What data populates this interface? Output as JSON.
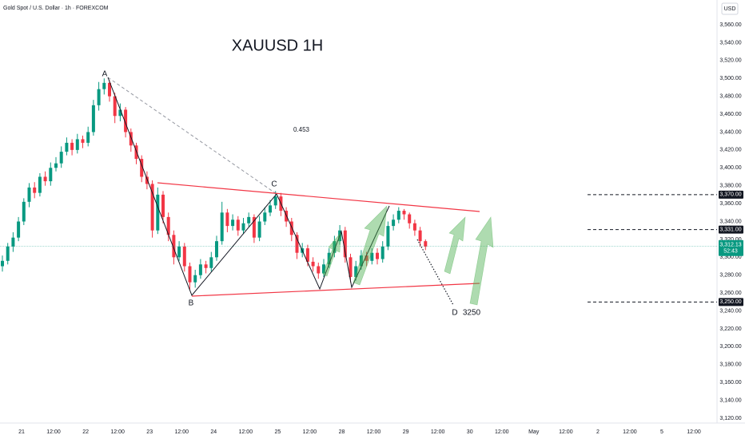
{
  "chart_data": {
    "type": "candlestick",
    "subtitle": "Gold Spot / U.S. Dollar · 1h · FOREXCOM",
    "currency": "USD",
    "title": "XAUUSD 1H",
    "annotations": {
      "a": "A",
      "b": "B",
      "c": "C",
      "d": "D",
      "target": "3250",
      "ratio": "0.453"
    },
    "up_color": "#089981",
    "down_color": "#f23645",
    "open": [
      3290,
      3296,
      3312,
      3322,
      3340,
      3362,
      3378,
      3372,
      3390,
      3385,
      3400,
      3405,
      3418,
      3428,
      3420,
      3432,
      3428,
      3440,
      3470,
      3488,
      3495,
      3480,
      3458,
      3465,
      3440,
      3425,
      3410,
      3390,
      3382,
      3330,
      3370,
      3345,
      3325,
      3300,
      3312,
      3290,
      3272,
      3280,
      3292,
      3288,
      3300,
      3318,
      3350,
      3335,
      3342,
      3330,
      3338,
      3345,
      3322,
      3340,
      3350,
      3358,
      3368,
      3352,
      3340,
      3325,
      3305,
      3310,
      3295,
      3290,
      3282,
      3292,
      3305,
      3318,
      3330,
      3300,
      3278,
      3290,
      3302,
      3296,
      3305,
      3298,
      3312,
      3335,
      3342,
      3352,
      3348,
      3338,
      3330,
      3318
    ],
    "high": [
      3302,
      3316,
      3328,
      3345,
      3366,
      3383,
      3384,
      3394,
      3396,
      3406,
      3412,
      3424,
      3434,
      3432,
      3438,
      3436,
      3446,
      3476,
      3496,
      3500,
      3498,
      3484,
      3472,
      3468,
      3444,
      3428,
      3414,
      3396,
      3386,
      3378,
      3374,
      3350,
      3330,
      3318,
      3316,
      3294,
      3286,
      3298,
      3296,
      3306,
      3324,
      3362,
      3354,
      3348,
      3346,
      3344,
      3350,
      3348,
      3346,
      3356,
      3364,
      3374,
      3372,
      3356,
      3344,
      3328,
      3316,
      3314,
      3300,
      3294,
      3298,
      3310,
      3324,
      3336,
      3334,
      3304,
      3296,
      3308,
      3306,
      3310,
      3310,
      3318,
      3340,
      3348,
      3356,
      3354,
      3350,
      3342,
      3334,
      3320
    ],
    "low": [
      3284,
      3292,
      3306,
      3318,
      3336,
      3356,
      3366,
      3368,
      3380,
      3380,
      3396,
      3400,
      3414,
      3414,
      3416,
      3422,
      3424,
      3436,
      3464,
      3482,
      3474,
      3450,
      3452,
      3434,
      3418,
      3404,
      3384,
      3376,
      3322,
      3326,
      3338,
      3318,
      3292,
      3296,
      3284,
      3264,
      3266,
      3276,
      3282,
      3284,
      3296,
      3314,
      3328,
      3330,
      3324,
      3326,
      3334,
      3316,
      3318,
      3336,
      3346,
      3354,
      3346,
      3334,
      3318,
      3298,
      3300,
      3290,
      3284,
      3276,
      3278,
      3288,
      3300,
      3314,
      3294,
      3272,
      3274,
      3286,
      3290,
      3292,
      3292,
      3294,
      3308,
      3330,
      3338,
      3342,
      3332,
      3324,
      3312,
      3308
    ],
    "close": [
      3296,
      3312,
      3322,
      3340,
      3362,
      3378,
      3372,
      3390,
      3385,
      3400,
      3405,
      3418,
      3428,
      3420,
      3432,
      3428,
      3440,
      3470,
      3488,
      3495,
      3480,
      3458,
      3465,
      3440,
      3425,
      3410,
      3390,
      3382,
      3330,
      3370,
      3345,
      3325,
      3300,
      3312,
      3290,
      3272,
      3280,
      3292,
      3288,
      3300,
      3318,
      3350,
      3335,
      3342,
      3330,
      3338,
      3345,
      3322,
      3340,
      3350,
      3358,
      3368,
      3352,
      3340,
      3325,
      3305,
      3310,
      3295,
      3290,
      3282,
      3292,
      3305,
      3318,
      3330,
      3300,
      3278,
      3290,
      3302,
      3296,
      3305,
      3298,
      3312,
      3335,
      3342,
      3352,
      3348,
      3338,
      3330,
      3318,
      3312
    ],
    "ylim": [
      3120,
      3560
    ],
    "yticks": [
      {
        "value": 3120,
        "label": "3,120.00"
      },
      {
        "value": 3140,
        "label": "3,140.00"
      },
      {
        "value": 3160,
        "label": "3,160.00"
      },
      {
        "value": 3180,
        "label": "3,180.00"
      },
      {
        "value": 3200,
        "label": "3,200.00"
      },
      {
        "value": 3220,
        "label": "3,220.00"
      },
      {
        "value": 3240,
        "label": "3,240.00"
      },
      {
        "value": 3260,
        "label": "3,260.00"
      },
      {
        "value": 3280,
        "label": "3,280.00"
      },
      {
        "value": 3300,
        "label": "3,300.00"
      },
      {
        "value": 3320,
        "label": "3,320.00"
      },
      {
        "value": 3340,
        "label": "3,340.00"
      },
      {
        "value": 3360,
        "label": "3,360.00"
      },
      {
        "value": 3380,
        "label": "3,380.00"
      },
      {
        "value": 3400,
        "label": "3,400.00"
      },
      {
        "value": 3420,
        "label": "3,420.00"
      },
      {
        "value": 3440,
        "label": "3,440.00"
      },
      {
        "value": 3460,
        "label": "3,460.00"
      },
      {
        "value": 3480,
        "label": "3,480.00"
      },
      {
        "value": 3500,
        "label": "3,500.00"
      },
      {
        "value": 3520,
        "label": "3,520.00"
      },
      {
        "value": 3540,
        "label": "3,540.00"
      },
      {
        "value": 3560,
        "label": "3,560.00"
      }
    ],
    "xtick_labels": [
      "21",
      "12:00",
      "22",
      "12:00",
      "23",
      "12:00",
      "24",
      "12:00",
      "25",
      "12:00",
      "28",
      "12:00",
      "29",
      "12:00",
      "30",
      "12:00",
      "May",
      "12:00",
      "2",
      "12:00",
      "5",
      "12:00"
    ],
    "levels": [
      {
        "value": 3370,
        "label": "3,370.00"
      },
      {
        "value": 3331,
        "label": "3,331.00"
      },
      {
        "value": 3250,
        "label": "3,250.00"
      }
    ],
    "last_price": {
      "value": 3312.13,
      "label": "3,312.13",
      "countdown": "52:43"
    },
    "grid": false
  }
}
